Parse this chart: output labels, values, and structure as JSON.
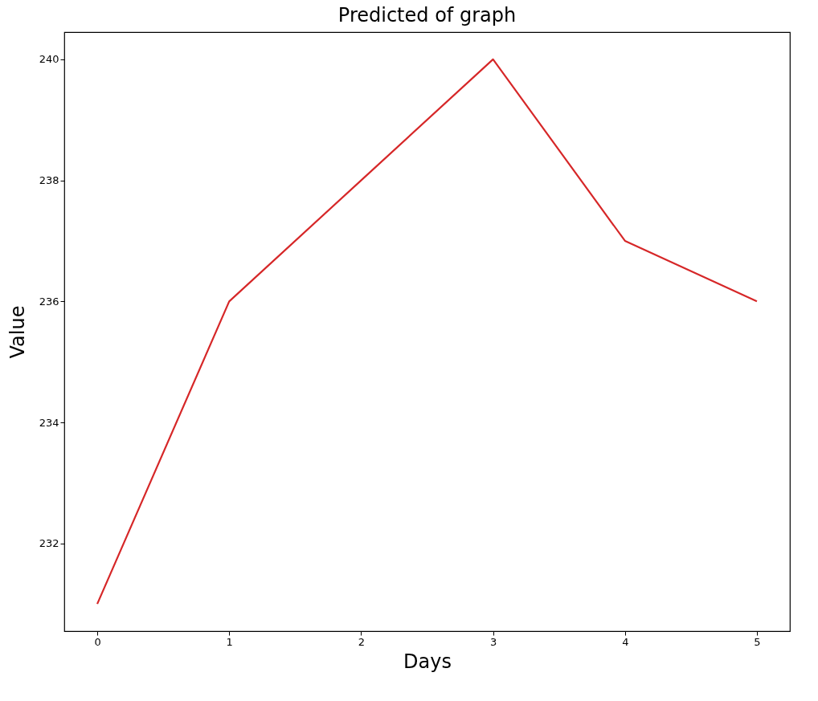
{
  "chart_data": {
    "type": "line",
    "title": "Predicted of graph",
    "xlabel": "Days",
    "ylabel": "Value",
    "x": [
      0,
      1,
      2,
      3,
      4,
      5
    ],
    "series": [
      {
        "color": "#d62728",
        "values": [
          231,
          236,
          238,
          240,
          237,
          236
        ]
      }
    ],
    "xlim": [
      -0.25,
      5.25
    ],
    "xticks": [
      0,
      1,
      2,
      3,
      4,
      5
    ],
    "ylim": [
      230.55,
      240.45
    ],
    "yticks": [
      232,
      234,
      236,
      238,
      240
    ],
    "grid": false,
    "marker": "none",
    "line_style": "solid"
  }
}
